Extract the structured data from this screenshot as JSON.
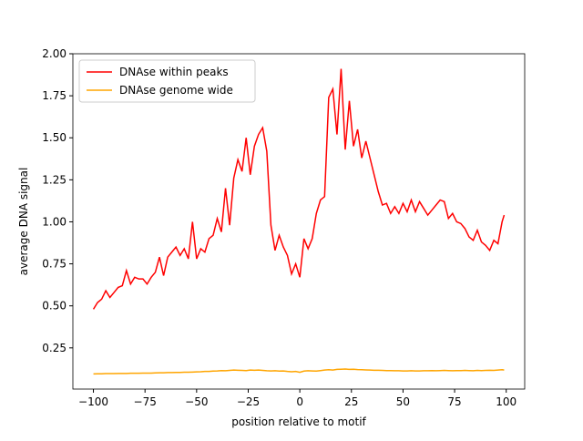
{
  "chart_data": {
    "type": "line",
    "x_label": "position relative to motif",
    "y_label": "average DNA signal",
    "x": [
      -100,
      -98,
      -96,
      -94,
      -92,
      -90,
      -88,
      -86,
      -84,
      -82,
      -80,
      -78,
      -76,
      -74,
      -72,
      -70,
      -68,
      -66,
      -64,
      -62,
      -60,
      -58,
      -56,
      -54,
      -52,
      -50,
      -48,
      -46,
      -44,
      -42,
      -40,
      -38,
      -36,
      -34,
      -32,
      -30,
      -28,
      -26,
      -24,
      -22,
      -20,
      -18,
      -16,
      -14,
      -12,
      -10,
      -8,
      -6,
      -4,
      -2,
      0,
      2,
      4,
      6,
      8,
      10,
      12,
      14,
      16,
      18,
      20,
      22,
      24,
      26,
      28,
      30,
      32,
      34,
      36,
      38,
      40,
      42,
      44,
      46,
      48,
      50,
      52,
      54,
      56,
      58,
      60,
      62,
      64,
      66,
      68,
      70,
      72,
      74,
      76,
      78,
      80,
      82,
      84,
      86,
      88,
      90,
      92,
      94,
      96,
      98,
      99
    ],
    "series": [
      {
        "name": "DNAse within peaks",
        "color": "#ff0000",
        "values": [
          0.48,
          0.52,
          0.54,
          0.59,
          0.55,
          0.58,
          0.61,
          0.62,
          0.71,
          0.63,
          0.67,
          0.66,
          0.66,
          0.63,
          0.67,
          0.7,
          0.79,
          0.68,
          0.79,
          0.82,
          0.85,
          0.8,
          0.84,
          0.78,
          1.0,
          0.78,
          0.84,
          0.82,
          0.9,
          0.92,
          1.02,
          0.94,
          1.2,
          0.98,
          1.26,
          1.37,
          1.3,
          1.5,
          1.28,
          1.45,
          1.52,
          1.56,
          1.42,
          0.98,
          0.83,
          0.92,
          0.85,
          0.8,
          0.69,
          0.75,
          0.67,
          0.9,
          0.84,
          0.9,
          1.05,
          1.13,
          1.15,
          1.74,
          1.79,
          1.52,
          1.91,
          1.43,
          1.72,
          1.45,
          1.55,
          1.38,
          1.48,
          1.38,
          1.28,
          1.18,
          1.1,
          1.11,
          1.05,
          1.09,
          1.05,
          1.11,
          1.06,
          1.13,
          1.06,
          1.12,
          1.08,
          1.04,
          1.07,
          1.1,
          1.13,
          1.12,
          1.02,
          1.05,
          1.0,
          0.99,
          0.96,
          0.91,
          0.89,
          0.95,
          0.88,
          0.86,
          0.83,
          0.89,
          0.87,
          1.0,
          1.04
        ]
      },
      {
        "name": "DNAse genome wide",
        "color": "#ffa500",
        "values": [
          0.095,
          0.096,
          0.096,
          0.097,
          0.097,
          0.097,
          0.098,
          0.098,
          0.098,
          0.099,
          0.099,
          0.099,
          0.1,
          0.1,
          0.1,
          0.101,
          0.102,
          0.102,
          0.103,
          0.103,
          0.104,
          0.104,
          0.105,
          0.105,
          0.106,
          0.107,
          0.108,
          0.11,
          0.11,
          0.112,
          0.113,
          0.115,
          0.114,
          0.116,
          0.118,
          0.117,
          0.116,
          0.115,
          0.118,
          0.117,
          0.118,
          0.116,
          0.114,
          0.113,
          0.114,
          0.112,
          0.113,
          0.11,
          0.108,
          0.11,
          0.105,
          0.112,
          0.114,
          0.113,
          0.112,
          0.115,
          0.118,
          0.12,
          0.118,
          0.122,
          0.123,
          0.124,
          0.122,
          0.123,
          0.121,
          0.12,
          0.119,
          0.118,
          0.117,
          0.117,
          0.116,
          0.115,
          0.115,
          0.114,
          0.114,
          0.113,
          0.113,
          0.114,
          0.113,
          0.113,
          0.114,
          0.114,
          0.115,
          0.114,
          0.115,
          0.116,
          0.115,
          0.114,
          0.115,
          0.115,
          0.116,
          0.115,
          0.114,
          0.116,
          0.115,
          0.116,
          0.117,
          0.116,
          0.118,
          0.12,
          0.118
        ]
      }
    ],
    "xlim": [
      -109.95,
      108.95
    ],
    "ylim": [
      0.005,
      2.0
    ],
    "xticks": [
      {
        "value": -100,
        "label": "−100"
      },
      {
        "value": -75,
        "label": "−75"
      },
      {
        "value": -50,
        "label": "−50"
      },
      {
        "value": -25,
        "label": "−25"
      },
      0,
      25,
      50,
      75,
      100
    ],
    "yticks": [
      {
        "value": 0.25,
        "label": "0.25"
      },
      {
        "value": 0.5,
        "label": "0.50"
      },
      {
        "value": 0.75,
        "label": "0.75"
      },
      {
        "value": 1.0,
        "label": "1.00"
      },
      {
        "value": 1.25,
        "label": "1.25"
      },
      {
        "value": 1.5,
        "label": "1.50"
      },
      {
        "value": 1.75,
        "label": "1.75"
      },
      {
        "value": 2.0,
        "label": "2.00"
      }
    ],
    "legend": "upper left",
    "grid": false
  }
}
